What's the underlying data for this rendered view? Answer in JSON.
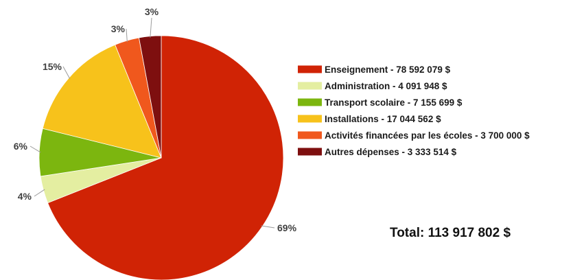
{
  "chart_data": {
    "type": "pie",
    "title": "",
    "start_angle_deg": 0,
    "direction": "clockwise",
    "slices": [
      {
        "label": "Enseignement - 78 592 079 $",
        "category": "Enseignement",
        "value": 78592079,
        "percent_label": "69%",
        "color": "#d02305"
      },
      {
        "label": "Administration - 4 091 948 $",
        "category": "Administration",
        "value": 4091948,
        "percent_label": "4%",
        "color": "#e4eea1"
      },
      {
        "label": "Transport scolaire - 7 155 699 $",
        "category": "Transport scolaire",
        "value": 7155699,
        "percent_label": "6%",
        "color": "#7cb60f"
      },
      {
        "label": "Installations - 17 044 562 $",
        "category": "Installations",
        "value": 17044562,
        "percent_label": "15%",
        "color": "#f7c21b"
      },
      {
        "label": "Activités financées par les écoles - 3 700 000 $",
        "category": "Activités financées par les écoles",
        "value": 3700000,
        "percent_label": "3%",
        "color": "#f0581d"
      },
      {
        "label": "Autres dépenses - 3 333 514 $",
        "category": "Autres dépenses",
        "value": 3333514,
        "percent_label": "3%",
        "color": "#7e0f0f"
      }
    ],
    "legend_position": "right"
  },
  "total_label": "Total: 113 917 802 $"
}
